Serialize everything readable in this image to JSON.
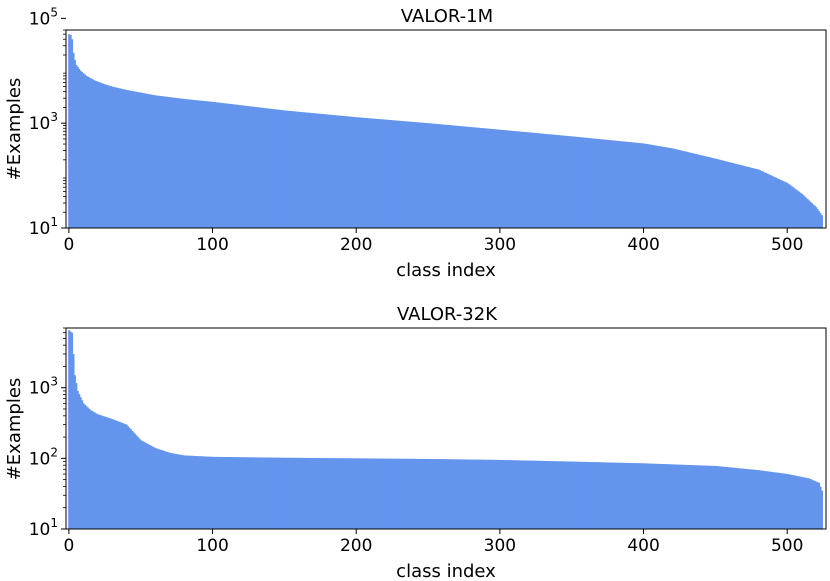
{
  "chart_data": [
    {
      "type": "bar",
      "title": "VALOR-1M",
      "xlabel": "class index",
      "ylabel": "#Examples",
      "yscale": "log",
      "xlim": [
        -2,
        527
      ],
      "ylim": [
        10,
        60000
      ],
      "x_ticks": [
        "0",
        "100",
        "200",
        "300",
        "400",
        "500"
      ],
      "y_ticks": [
        {
          "base": "10",
          "exp": "1"
        },
        {
          "base": "10",
          "exp": "3"
        },
        {
          "base": "10",
          "exp": "5"
        }
      ],
      "bar_color": "#6495ed",
      "grid": false,
      "num_classes": 525,
      "profile_points": [
        [
          0,
          50000
        ],
        [
          1,
          48000
        ],
        [
          2,
          40000
        ],
        [
          3,
          22000
        ],
        [
          4,
          16000
        ],
        [
          5,
          13000
        ],
        [
          8,
          10000
        ],
        [
          12,
          8000
        ],
        [
          18,
          6500
        ],
        [
          25,
          5500
        ],
        [
          30,
          5000
        ],
        [
          40,
          4300
        ],
        [
          60,
          3400
        ],
        [
          80,
          2900
        ],
        [
          100,
          2550
        ],
        [
          150,
          1750
        ],
        [
          200,
          1300
        ],
        [
          250,
          1000
        ],
        [
          300,
          750
        ],
        [
          350,
          560
        ],
        [
          400,
          410
        ],
        [
          420,
          330
        ],
        [
          450,
          210
        ],
        [
          480,
          130
        ],
        [
          500,
          72
        ],
        [
          510,
          45
        ],
        [
          520,
          25
        ],
        [
          525,
          16
        ]
      ]
    },
    {
      "type": "bar",
      "title": "VALOR-32K",
      "xlabel": "class index",
      "ylabel": "#Examples",
      "yscale": "log",
      "xlim": [
        -2,
        527
      ],
      "ylim": [
        10,
        7000
      ],
      "x_ticks": [
        "0",
        "100",
        "200",
        "300",
        "400",
        "500"
      ],
      "y_ticks": [
        {
          "base": "10",
          "exp": "1"
        },
        {
          "base": "10",
          "exp": "2"
        },
        {
          "base": "10",
          "exp": "3"
        }
      ],
      "bar_color": "#6495ed",
      "grid": false,
      "num_classes": 525,
      "profile_points": [
        [
          0,
          6500
        ],
        [
          2,
          6000
        ],
        [
          3,
          3000
        ],
        [
          4,
          1500
        ],
        [
          6,
          900
        ],
        [
          10,
          600
        ],
        [
          15,
          480
        ],
        [
          20,
          420
        ],
        [
          30,
          360
        ],
        [
          40,
          300
        ],
        [
          50,
          180
        ],
        [
          60,
          140
        ],
        [
          70,
          120
        ],
        [
          80,
          110
        ],
        [
          100,
          105
        ],
        [
          150,
          102
        ],
        [
          200,
          100
        ],
        [
          250,
          98
        ],
        [
          300,
          95
        ],
        [
          350,
          90
        ],
        [
          400,
          85
        ],
        [
          450,
          78
        ],
        [
          480,
          68
        ],
        [
          500,
          60
        ],
        [
          515,
          52
        ],
        [
          522,
          45
        ],
        [
          524,
          35
        ],
        [
          525,
          30
        ]
      ]
    }
  ]
}
